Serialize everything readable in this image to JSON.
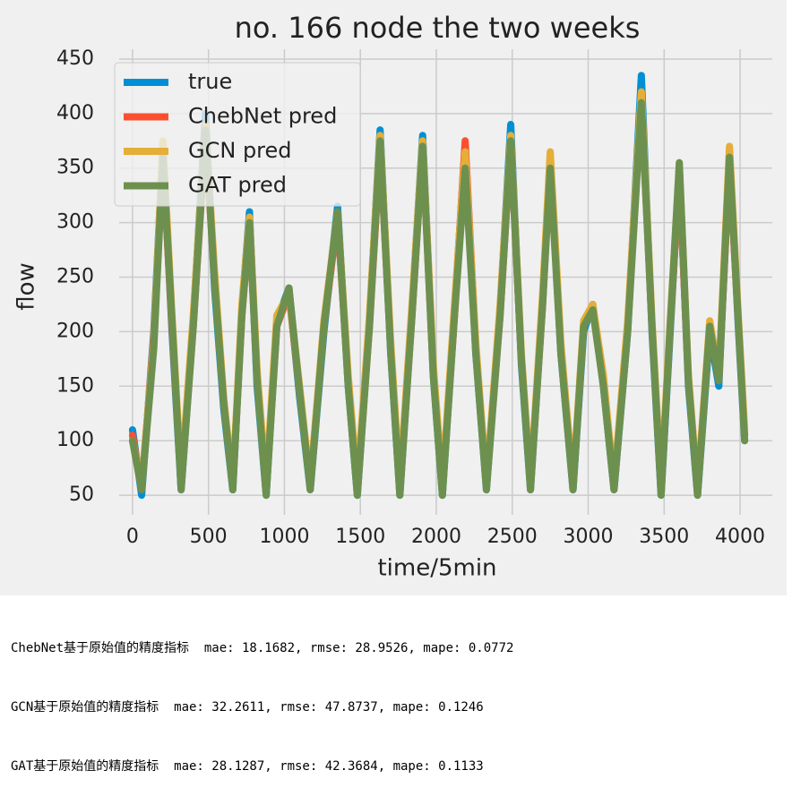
{
  "chart_data": {
    "type": "line",
    "title": "no. 166 node the two weeks",
    "xlabel": "time/5min",
    "ylabel": "flow",
    "x": [
      0,
      60,
      140,
      200,
      260,
      320,
      400,
      480,
      540,
      600,
      660,
      720,
      770,
      820,
      880,
      950,
      1030,
      1100,
      1170,
      1260,
      1350,
      1420,
      1480,
      1560,
      1630,
      1700,
      1760,
      1840,
      1910,
      1980,
      2040,
      2120,
      2190,
      2260,
      2330,
      2420,
      2490,
      2560,
      2620,
      2700,
      2750,
      2820,
      2900,
      2970,
      3030,
      3100,
      3170,
      3260,
      3350,
      3420,
      3480,
      3540,
      3600,
      3660,
      3720,
      3800,
      3860,
      3930,
      3990,
      4030
    ],
    "series": [
      {
        "name": "true",
        "color": "#008fd5",
        "values": [
          110,
          50,
          200,
          370,
          200,
          55,
          210,
          400,
          240,
          130,
          55,
          220,
          310,
          150,
          50,
          210,
          240,
          140,
          55,
          200,
          315,
          150,
          50,
          210,
          385,
          180,
          50,
          220,
          380,
          160,
          50,
          220,
          370,
          180,
          55,
          220,
          390,
          170,
          55,
          230,
          360,
          180,
          55,
          200,
          225,
          150,
          55,
          200,
          435,
          200,
          50,
          200,
          350,
          150,
          50,
          200,
          150,
          365,
          200,
          100
        ]
      },
      {
        "name": "ChebNet pred",
        "color": "#fc4f30",
        "values": [
          105,
          55,
          195,
          360,
          205,
          60,
          205,
          380,
          250,
          135,
          60,
          215,
          300,
          160,
          55,
          205,
          235,
          145,
          60,
          205,
          305,
          155,
          55,
          205,
          370,
          185,
          55,
          215,
          370,
          165,
          55,
          215,
          375,
          185,
          60,
          215,
          375,
          175,
          60,
          225,
          360,
          185,
          60,
          205,
          220,
          155,
          60,
          205,
          415,
          205,
          55,
          205,
          345,
          155,
          55,
          205,
          155,
          355,
          205,
          105
        ]
      },
      {
        "name": "GCN pred",
        "color": "#e5ae38",
        "values": [
          100,
          60,
          190,
          375,
          215,
          65,
          215,
          390,
          255,
          140,
          60,
          225,
          305,
          165,
          60,
          215,
          235,
          150,
          60,
          210,
          310,
          160,
          60,
          215,
          380,
          190,
          60,
          225,
          375,
          170,
          60,
          225,
          365,
          190,
          60,
          225,
          380,
          180,
          60,
          235,
          365,
          190,
          60,
          210,
          225,
          160,
          60,
          210,
          420,
          210,
          60,
          210,
          350,
          160,
          55,
          210,
          160,
          370,
          210,
          110
        ]
      },
      {
        "name": "GAT pred",
        "color": "#6d904f",
        "values": [
          100,
          55,
          185,
          360,
          210,
          55,
          205,
          385,
          245,
          135,
          55,
          215,
          300,
          155,
          50,
          205,
          240,
          145,
          55,
          205,
          310,
          150,
          50,
          205,
          375,
          180,
          50,
          215,
          370,
          160,
          50,
          215,
          350,
          180,
          55,
          215,
          375,
          175,
          55,
          225,
          350,
          180,
          55,
          205,
          220,
          150,
          55,
          200,
          410,
          205,
          50,
          205,
          355,
          155,
          50,
          205,
          155,
          360,
          205,
          100
        ]
      }
    ],
    "xlim": [
      -88,
      4212
    ],
    "ylim": [
      32,
      459
    ],
    "xticks": [
      0,
      500,
      1000,
      1500,
      2000,
      2500,
      3000,
      3500,
      4000
    ],
    "yticks": [
      50,
      100,
      150,
      200,
      250,
      300,
      350,
      400,
      450
    ],
    "grid": true,
    "legend": "upper left"
  },
  "output_lines": [
    "ChebNet基于原始值的精度指标  mae: 18.1682, rmse: 28.9526, mape: 0.0772",
    "GCN基于原始值的精度指标  mae: 32.2611, rmse: 47.8737, mape: 0.1246",
    "GAT基于原始值的精度指标  mae: 28.1287, rmse: 42.3684, mape: 0.1133"
  ]
}
